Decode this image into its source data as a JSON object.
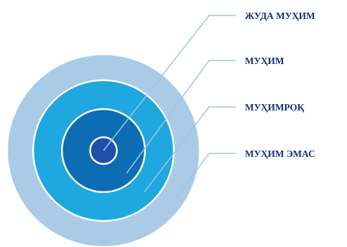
{
  "colors": {
    "outer_ring": "#a9cbe6",
    "second_ring": "#1fa8e0",
    "third_ring": "#0c6db5",
    "core": "#1f4fa8",
    "ring_border": "#ffffff",
    "leader_line": "#9fc4e3",
    "label_text": "#12307a"
  },
  "diagram": {
    "type": "concentric-importance-target",
    "levels": [
      {
        "label": "ЖУДА МУҲИМ"
      },
      {
        "label": "МУҲИМ"
      },
      {
        "label": "МУҲИМРОҚ"
      },
      {
        "label": "МУҲИМ ЭМАС"
      }
    ]
  }
}
